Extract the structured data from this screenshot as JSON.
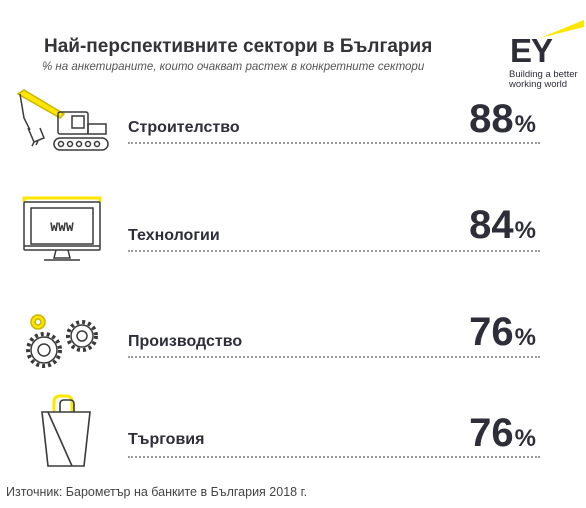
{
  "title": "Най-перспективните сектори в България",
  "subtitle": "% на анкетираните, които очакват растеж в конкретните сектори",
  "logo": {
    "text": "EY",
    "tagline_line1": "Building a better",
    "tagline_line2": "working world"
  },
  "colors": {
    "accent": "#ffe600",
    "text": "#2e2e38",
    "icon_stroke": "#3a3a3a"
  },
  "chart_data": {
    "type": "table",
    "categories": [
      "Строителство",
      "Технологии",
      "Производство",
      "Търговия"
    ],
    "values": [
      88,
      84,
      76,
      76
    ],
    "unit": "%",
    "icons": [
      "excavator-icon",
      "monitor-www-icon",
      "gears-icon",
      "shopping-bag-icon"
    ],
    "monitor_text": "WWW"
  },
  "rows": [
    {
      "label": "Строителство",
      "value": "88",
      "unit": "%"
    },
    {
      "label": "Технологии",
      "value": "84",
      "unit": "%"
    },
    {
      "label": "Производство",
      "value": "76",
      "unit": "%"
    },
    {
      "label": "Търговия",
      "value": "76",
      "unit": "%"
    }
  ],
  "source": "Източник: Барометър на банките в България 2018 г."
}
